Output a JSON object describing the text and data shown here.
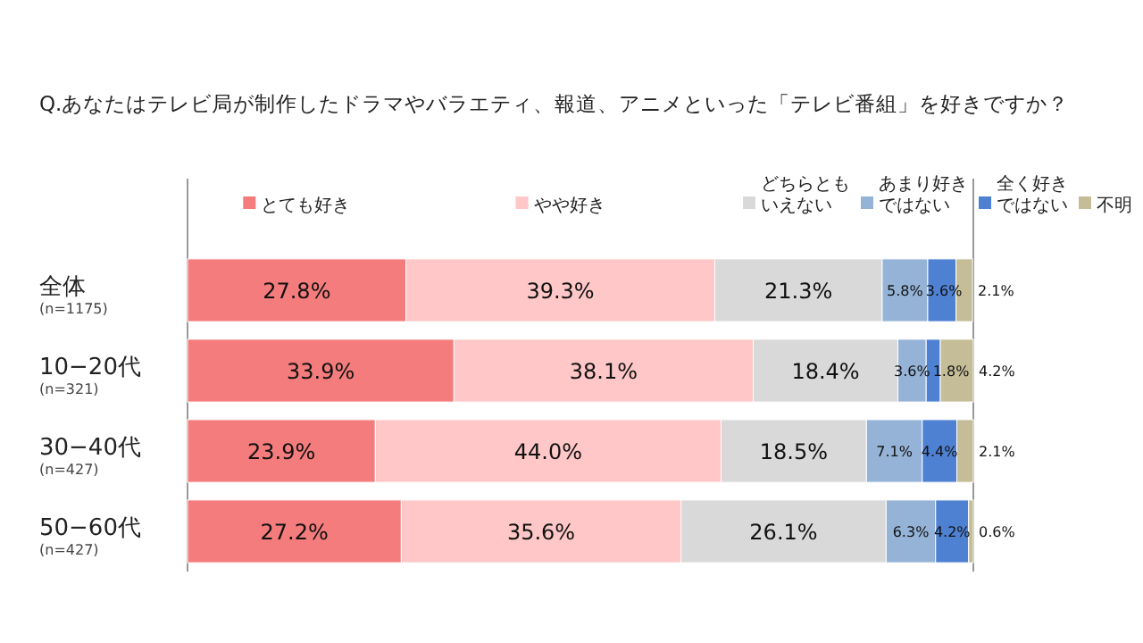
{
  "chart_data": {
    "type": "bar",
    "orientation": "horizontal",
    "stacked": true,
    "title": "Q.あなたはテレビ局が制作したドラマやバラエティ、報道、アニメといった「テレビ番組」を好きですか？",
    "categories": [
      "全体\n(n=1175)",
      "10−20代\n(n=321)",
      "30−40代\n(n=427)",
      "50−60代\n(n=427)"
    ],
    "tick_labels": "y",
    "legend": "top",
    "series": [
      {
        "name": "とても好き",
        "color": "#f47c7c",
        "values": [
          27.8,
          33.9,
          23.9,
          27.2
        ],
        "value_labels": [
          "27.8%",
          "33.9%",
          "23.9%",
          "27.2%"
        ]
      },
      {
        "name": "やや好き",
        "color": "#ffc7c7",
        "values": [
          39.3,
          38.1,
          44.0,
          35.6
        ],
        "value_labels": [
          "39.3%",
          "38.1%",
          "44.0%",
          "35.6%"
        ]
      },
      {
        "name": "どちらともいえない",
        "color": "#d9d9d9",
        "values": [
          21.3,
          18.4,
          18.5,
          26.1
        ],
        "value_labels": [
          "21.3%",
          "18.4%",
          "18.5%",
          "26.1%"
        ]
      },
      {
        "name": "あまり好きではない",
        "color": "#95b3d7",
        "values": [
          5.8,
          3.6,
          7.1,
          6.3
        ],
        "value_labels": [
          "5.8%",
          "3.6%",
          "7.1%",
          "6.3%"
        ]
      },
      {
        "name": "全く好きではない",
        "color": "#4f81d3",
        "values": [
          3.6,
          1.8,
          4.4,
          4.2
        ],
        "value_labels": [
          "3.6%",
          "1.8%",
          "4.4%",
          "4.2%"
        ]
      },
      {
        "name": "不明",
        "color": "#c4bd97",
        "values": [
          2.1,
          4.2,
          2.1,
          0.6
        ],
        "value_labels": [
          "2.1%",
          "4.2%",
          "2.1%",
          "0.6%"
        ]
      }
    ]
  }
}
